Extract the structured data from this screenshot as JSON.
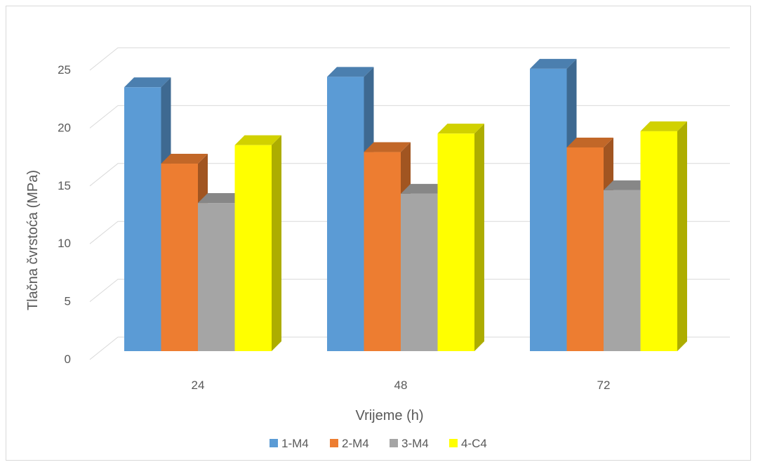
{
  "chart_data": {
    "type": "bar",
    "subtype": "3d-clustered-column",
    "title": "",
    "xlabel": "Vrijeme (h)",
    "ylabel": "Tlačna čvrstoća (MPa)",
    "categories": [
      "24",
      "48",
      "72"
    ],
    "ylim": [
      0,
      25
    ],
    "yticks": [
      "0",
      "5",
      "10",
      "15",
      "20",
      "25"
    ],
    "grid": true,
    "legend_position": "bottom",
    "series": [
      {
        "name": "1-M4",
        "color": "#5b9bd5",
        "values": [
          22.8,
          23.7,
          24.4
        ]
      },
      {
        "name": "2-M4",
        "color": "#ed7d31",
        "values": [
          16.2,
          17.2,
          17.6
        ]
      },
      {
        "name": "3-M4",
        "color": "#a5a5a5",
        "values": [
          12.8,
          13.6,
          13.9
        ]
      },
      {
        "name": "4-C4",
        "color": "#ffff00",
        "values": [
          17.8,
          18.8,
          19.0
        ]
      }
    ]
  }
}
